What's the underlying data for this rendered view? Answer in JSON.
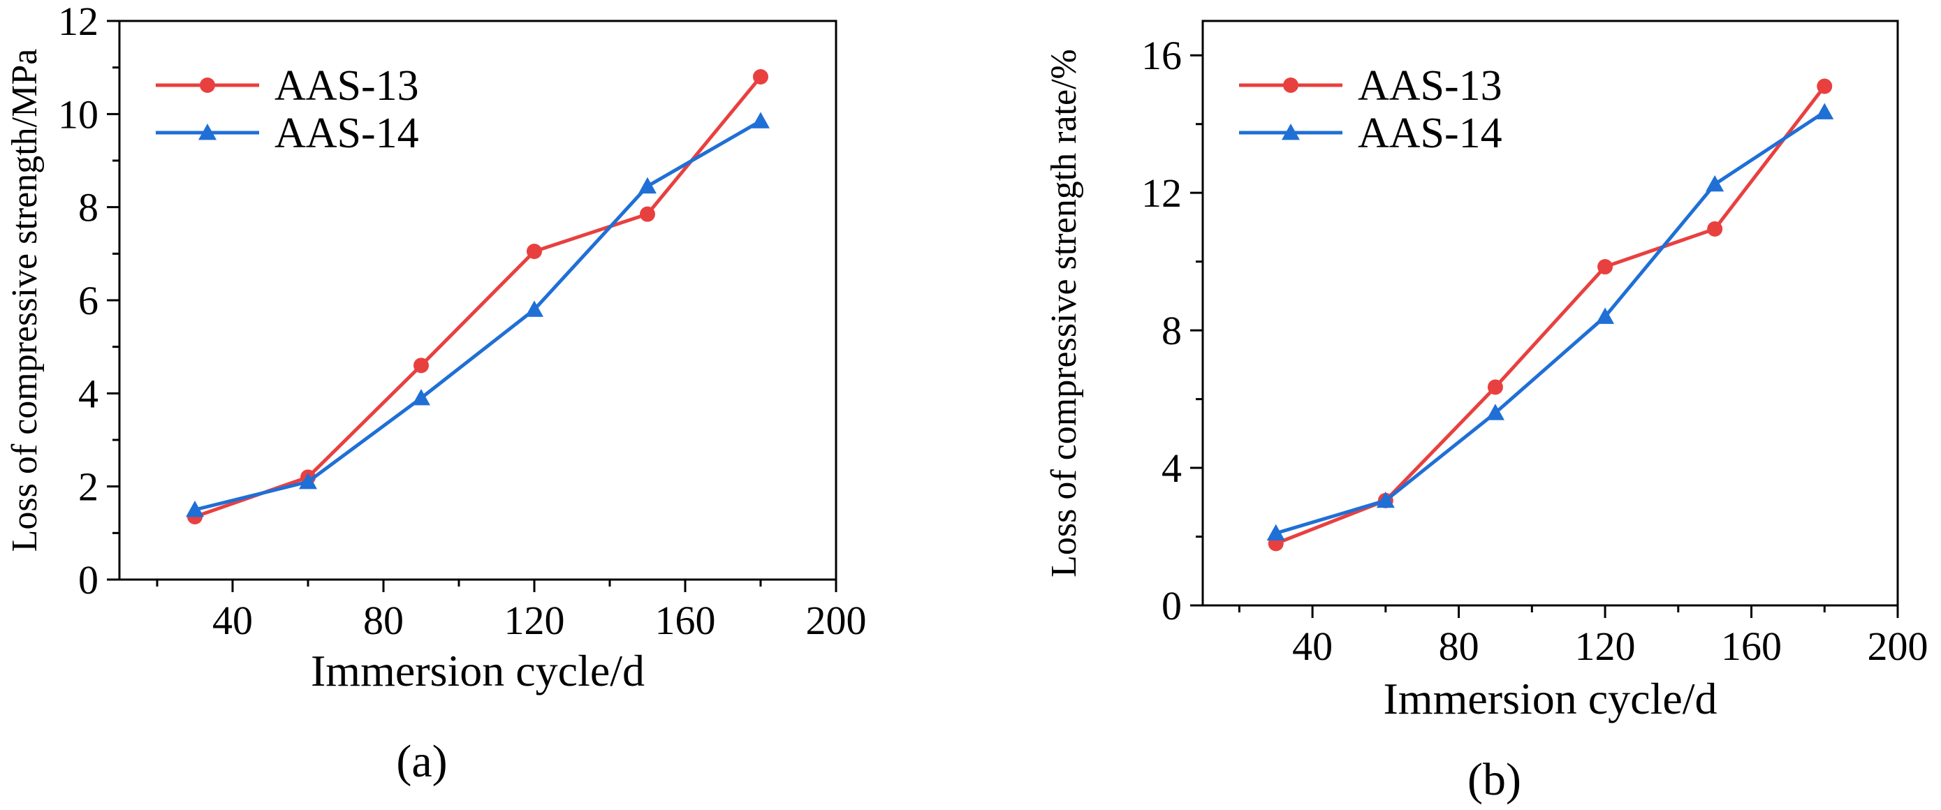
{
  "chart_data": [
    {
      "type": "line",
      "panel_label": "(a)",
      "xlabel": "Immersion cycle/d",
      "ylabel": "Loss of compressive strength/MPa",
      "xlim": [
        10,
        200
      ],
      "ylim": [
        0,
        12
      ],
      "xticks": [
        40,
        80,
        120,
        160,
        200
      ],
      "yticks": [
        0,
        2,
        4,
        6,
        8,
        10,
        12
      ],
      "legend_position": "top-left",
      "series": [
        {
          "name": "AAS-13",
          "marker": "circle",
          "color": "#e8403f",
          "x": [
            30,
            60,
            90,
            120,
            150,
            180
          ],
          "y": [
            1.35,
            2.2,
            4.6,
            7.05,
            7.85,
            10.8
          ]
        },
        {
          "name": "AAS-14",
          "marker": "triangle",
          "color": "#1f6fd6",
          "x": [
            30,
            60,
            90,
            120,
            150,
            180
          ],
          "y": [
            1.5,
            2.1,
            3.9,
            5.8,
            8.45,
            9.85
          ]
        }
      ]
    },
    {
      "type": "line",
      "panel_label": "(b)",
      "xlabel": "Immersion cycle/d",
      "ylabel": "Loss of compressive strength rate/%",
      "xlim": [
        10,
        200
      ],
      "ylim": [
        0,
        17
      ],
      "xticks": [
        40,
        80,
        120,
        160,
        200
      ],
      "yticks": [
        0,
        4,
        8,
        12,
        16
      ],
      "legend_position": "top-left",
      "series": [
        {
          "name": "AAS-13",
          "marker": "circle",
          "color": "#e8403f",
          "x": [
            30,
            60,
            90,
            120,
            150,
            180
          ],
          "y": [
            1.8,
            3.05,
            6.35,
            9.85,
            10.95,
            15.1
          ]
        },
        {
          "name": "AAS-14",
          "marker": "triangle",
          "color": "#1f6fd6",
          "x": [
            30,
            60,
            90,
            120,
            150,
            180
          ],
          "y": [
            2.1,
            3.05,
            5.6,
            8.4,
            12.25,
            14.35
          ]
        }
      ]
    }
  ]
}
